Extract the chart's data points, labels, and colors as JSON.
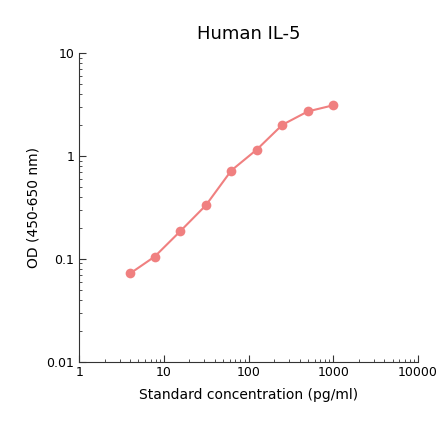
{
  "title": "Human IL-5",
  "xlabel": "Standard concentration (pg/ml)",
  "ylabel": "OD (450-650 nm)",
  "x_data": [
    4,
    7.8,
    15.6,
    31.25,
    62.5,
    125,
    250,
    500,
    1000
  ],
  "y_data": [
    0.072,
    0.105,
    0.185,
    0.33,
    0.72,
    1.15,
    2.0,
    2.7,
    3.1
  ],
  "xlim": [
    1,
    10000
  ],
  "ylim": [
    0.01,
    10
  ],
  "line_color": "#F08080",
  "marker_color": "#F08080",
  "marker_size": 7,
  "line_width": 1.5,
  "title_fontsize": 13,
  "label_fontsize": 10,
  "tick_fontsize": 9,
  "background_color": "#ffffff",
  "ytick_labels": [
    "0.01",
    "0.1",
    "1",
    "10"
  ],
  "ytick_vals": [
    0.01,
    0.1,
    1,
    10
  ],
  "xtick_labels": [
    "1",
    "10",
    "100",
    "1000",
    "10000"
  ],
  "xtick_vals": [
    1,
    10,
    100,
    1000,
    10000
  ]
}
